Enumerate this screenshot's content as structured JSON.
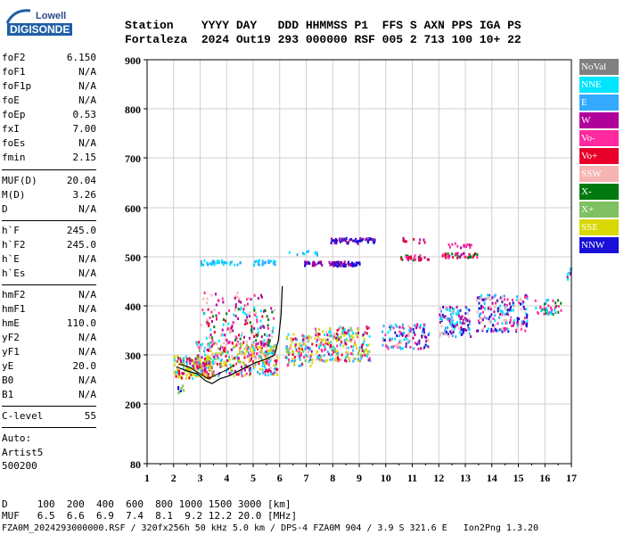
{
  "logo": {
    "line1": "Lowell",
    "line2": "DIGISONDE"
  },
  "header": {
    "labels_line": "Station    YYYY DAY   DDD HHMMSS P1  FFS S AXN PPS IGA PS",
    "values_line": "Fortaleza  2024 Out19 293 000000 RSF 005 2 713 100 10+ 22"
  },
  "params": [
    {
      "k": "foF2",
      "v": "6.150"
    },
    {
      "k": "foF1",
      "v": "N/A"
    },
    {
      "k": "foF1p",
      "v": "N/A"
    },
    {
      "k": "foE",
      "v": "N/A"
    },
    {
      "k": "foEp",
      "v": "0.53"
    },
    {
      "k": "fxI",
      "v": "7.00"
    },
    {
      "k": "foEs",
      "v": "N/A"
    },
    {
      "k": "fmin",
      "v": "2.15"
    },
    {
      "k": "MUF(D)",
      "v": "20.04"
    },
    {
      "k": "M(D)",
      "v": "3.26"
    },
    {
      "k": "D",
      "v": "N/A"
    },
    {
      "k": "h`F",
      "v": "245.0"
    },
    {
      "k": "h`F2",
      "v": "245.0"
    },
    {
      "k": "h`E",
      "v": "N/A"
    },
    {
      "k": "h`Es",
      "v": "N/A"
    },
    {
      "k": "hmF2",
      "v": "N/A"
    },
    {
      "k": "hmF1",
      "v": "N/A"
    },
    {
      "k": "hmE",
      "v": "110.0"
    },
    {
      "k": "yF2",
      "v": "N/A"
    },
    {
      "k": "yF1",
      "v": "N/A"
    },
    {
      "k": "yE",
      "v": "20.0"
    },
    {
      "k": "B0",
      "v": "N/A"
    },
    {
      "k": "B1",
      "v": "N/A"
    },
    {
      "k": "C-level",
      "v": "55"
    }
  ],
  "auto": {
    "label": "Auto:",
    "software": "Artist5",
    "version": "500200"
  },
  "legend": [
    {
      "label": "NoVal",
      "color": "#808080"
    },
    {
      "label": "NNE",
      "color": "#00e5ff"
    },
    {
      "label": "E",
      "color": "#33aaff"
    },
    {
      "label": "W",
      "color": "#b0009a"
    },
    {
      "label": "Vo-",
      "color": "#ff2aa0"
    },
    {
      "label": "Vo+",
      "color": "#e8002a"
    },
    {
      "label": "SSW",
      "color": "#f6b4b4"
    },
    {
      "label": "X-",
      "color": "#007a10"
    },
    {
      "label": "X+",
      "color": "#7fc060"
    },
    {
      "label": "SSE",
      "color": "#d8d800"
    },
    {
      "label": "NNW",
      "color": "#1a10d8"
    }
  ],
  "chart_data": {
    "type": "scatter",
    "xlim": [
      1,
      17
    ],
    "ylim": [
      80,
      900
    ],
    "x_ticks": [
      "1",
      "2",
      "3",
      "4",
      "5",
      "6",
      "7",
      "8",
      "9",
      "10",
      "11",
      "12",
      "13",
      "14",
      "15",
      "16",
      "17"
    ],
    "y_ticks": [
      "80",
      "200",
      "300",
      "400",
      "500",
      "600",
      "700",
      "800",
      "900"
    ],
    "grid": true
  },
  "footer": {
    "line1": "D     100  200  400  600  800 1000 1500 3000 [km]",
    "line2": "MUF   6.5  6.6  6.9  7.4  8.1  9.2 12.2 20.0 [MHz]",
    "line3": "FZA0M_2024293000000.RSF / 320fx256h 50 kHz 5.0 km / DPS-4 FZA0M 904 / 3.9 S 321.6 E   Ion2Png 1.3.20"
  }
}
